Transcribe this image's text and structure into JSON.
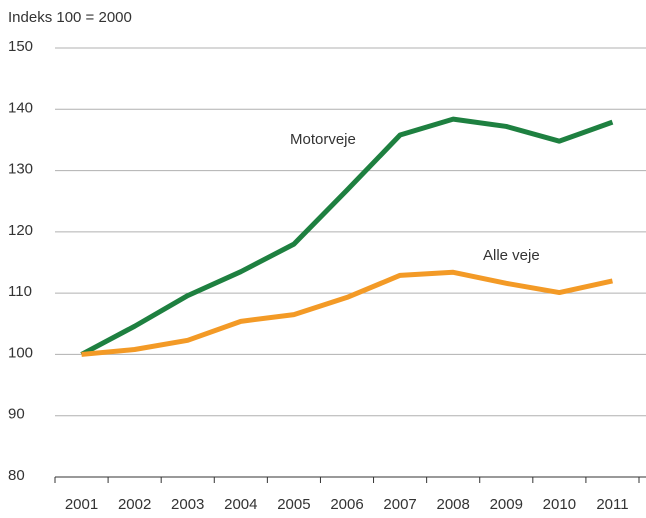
{
  "chart_data": {
    "type": "line",
    "y_axis_label": "Indeks 100 = 2000",
    "categories": [
      "2001",
      "2002",
      "2003",
      "2004",
      "2005",
      "2006",
      "2007",
      "2008",
      "2009",
      "2010",
      "2011"
    ],
    "series": [
      {
        "name": "Motorveje",
        "color": "#1e8040",
        "values": [
          100,
          104.6,
          109.6,
          113.5,
          118,
          126.8,
          135.8,
          138.4,
          137.2,
          134.8,
          137.9
        ]
      },
      {
        "name": "Alle veje",
        "color": "#f39a26",
        "values": [
          100,
          100.8,
          102.3,
          105.4,
          106.5,
          109.3,
          112.9,
          113.4,
          111.6,
          110.1,
          112
        ]
      }
    ],
    "ylim": [
      80,
      150
    ],
    "yticks": [
      80,
      90,
      100,
      110,
      120,
      130,
      140,
      150
    ],
    "grid": true
  }
}
